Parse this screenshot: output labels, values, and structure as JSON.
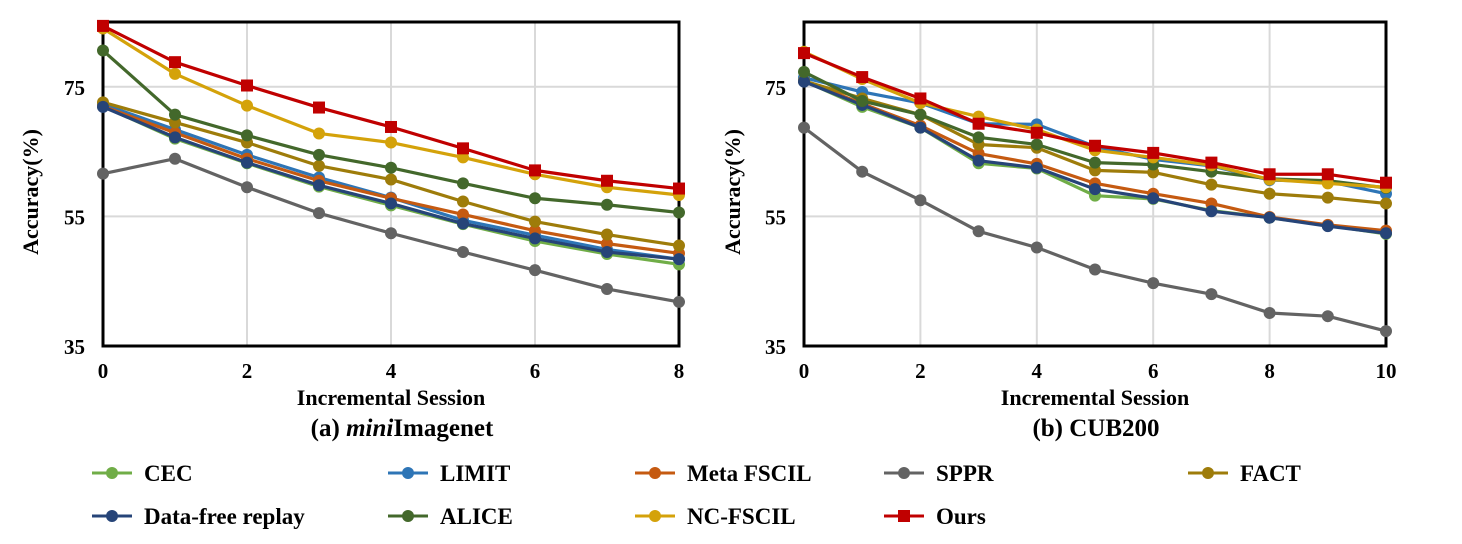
{
  "legend": [
    {
      "name": "CEC",
      "color": "#70AD47",
      "marker": "circle"
    },
    {
      "name": "LIMIT",
      "color": "#2E75B6",
      "marker": "circle"
    },
    {
      "name": "Meta FSCIL",
      "color": "#C55A11",
      "marker": "circle"
    },
    {
      "name": "SPPR",
      "color": "#636363",
      "marker": "circle"
    },
    {
      "name": "FACT",
      "color": "#9E7C0A",
      "marker": "circle"
    },
    {
      "name": "Data-free replay",
      "color": "#264478",
      "marker": "circle"
    },
    {
      "name": "ALICE",
      "color": "#43682B",
      "marker": "circle"
    },
    {
      "name": "NC-FSCIL",
      "color": "#D4A20A",
      "marker": "circle"
    },
    {
      "name": "Ours",
      "color": "#C00000",
      "marker": "square"
    }
  ],
  "chart_data": [
    {
      "type": "line",
      "title": "(a) miniImagenet",
      "title_prefix": "(a) ",
      "title_italic": "mini",
      "title_suffix": "Imagenet",
      "xlabel": "Incremental Session",
      "ylabel": "Accuracy(%)",
      "ylim": [
        35,
        85
      ],
      "yticks": [
        35,
        55,
        75
      ],
      "xlim": [
        0,
        8
      ],
      "xticks": [
        0,
        2,
        4,
        6,
        8
      ],
      "grid": true,
      "x": [
        0,
        1,
        2,
        3,
        4,
        5,
        6,
        7,
        8
      ],
      "series": [
        {
          "name": "CEC",
          "values": [
            72.0,
            67.0,
            63.2,
            59.6,
            56.7,
            53.8,
            51.2,
            49.2,
            47.6
          ]
        },
        {
          "name": "LIMIT",
          "values": [
            72.3,
            68.4,
            64.5,
            61.0,
            57.9,
            54.4,
            52.1,
            49.9,
            48.4
          ]
        },
        {
          "name": "Meta FSCIL",
          "values": [
            72.0,
            67.9,
            63.9,
            60.5,
            57.8,
            55.3,
            52.8,
            50.8,
            49.3
          ]
        },
        {
          "name": "SPPR",
          "values": [
            61.6,
            63.9,
            59.5,
            55.5,
            52.4,
            49.5,
            46.7,
            43.8,
            41.8
          ]
        },
        {
          "name": "FACT",
          "values": [
            72.6,
            69.5,
            66.4,
            62.8,
            60.7,
            57.3,
            54.2,
            52.2,
            50.5
          ]
        },
        {
          "name": "Data-free replay",
          "values": [
            71.9,
            67.2,
            63.3,
            59.8,
            57.0,
            53.9,
            51.6,
            49.5,
            48.4
          ]
        },
        {
          "name": "ALICE",
          "values": [
            80.6,
            70.7,
            67.5,
            64.5,
            62.5,
            60.1,
            57.8,
            56.8,
            55.6
          ]
        },
        {
          "name": "NC-FSCIL",
          "values": [
            84.0,
            77.0,
            72.1,
            67.8,
            66.4,
            64.1,
            61.5,
            59.5,
            58.3
          ]
        },
        {
          "name": "Ours",
          "values": [
            84.4,
            78.8,
            75.2,
            71.8,
            68.8,
            65.5,
            62.1,
            60.5,
            59.3
          ]
        }
      ]
    },
    {
      "type": "line",
      "title": "(b) CUB200",
      "xlabel": "Incremental Session",
      "ylabel": "Accuracy(%)",
      "ylim": [
        35,
        85
      ],
      "yticks": [
        35,
        55,
        75
      ],
      "xlim": [
        0,
        10
      ],
      "xticks": [
        0,
        2,
        4,
        6,
        8,
        10
      ],
      "grid": true,
      "x": [
        0,
        1,
        2,
        3,
        4,
        5,
        6,
        7,
        8,
        9,
        10
      ],
      "series": [
        {
          "name": "CEC",
          "values": [
            75.9,
            71.9,
            68.7,
            63.2,
            62.4,
            58.2,
            57.7,
            55.9,
            54.8,
            53.6,
            52.3
          ]
        },
        {
          "name": "LIMIT",
          "values": [
            76.4,
            74.2,
            72.5,
            69.3,
            69.2,
            65.8,
            63.8,
            62.8,
            60.6,
            60.4,
            58.5
          ]
        },
        {
          "name": "Meta FSCIL",
          "values": [
            75.9,
            72.4,
            69.0,
            64.7,
            63.1,
            60.1,
            58.5,
            57.0,
            54.9,
            53.7,
            52.8
          ]
        },
        {
          "name": "SPPR",
          "values": [
            68.7,
            61.9,
            57.5,
            52.7,
            50.2,
            46.8,
            44.7,
            43.0,
            40.1,
            39.6,
            37.3
          ]
        },
        {
          "name": "FACT",
          "values": [
            75.9,
            73.2,
            70.7,
            66.1,
            65.6,
            62.1,
            61.8,
            59.9,
            58.5,
            57.9,
            57.0
          ]
        },
        {
          "name": "Data-free replay",
          "values": [
            75.8,
            72.2,
            68.7,
            63.6,
            62.5,
            59.2,
            57.8,
            55.8,
            54.8,
            53.5,
            52.4
          ]
        },
        {
          "name": "ALICE",
          "values": [
            77.3,
            72.8,
            70.7,
            67.2,
            66.1,
            63.3,
            63.0,
            61.9,
            60.8,
            60.5,
            59.4
          ]
        },
        {
          "name": "NC-FSCIL",
          "values": [
            80.4,
            76.2,
            72.5,
            70.4,
            68.4,
            65.2,
            64.1,
            62.9,
            60.7,
            60.1,
            59.5
          ]
        },
        {
          "name": "Ours",
          "values": [
            80.2,
            76.5,
            73.2,
            69.3,
            67.9,
            65.9,
            64.8,
            63.3,
            61.5,
            61.5,
            60.2
          ]
        }
      ]
    }
  ]
}
